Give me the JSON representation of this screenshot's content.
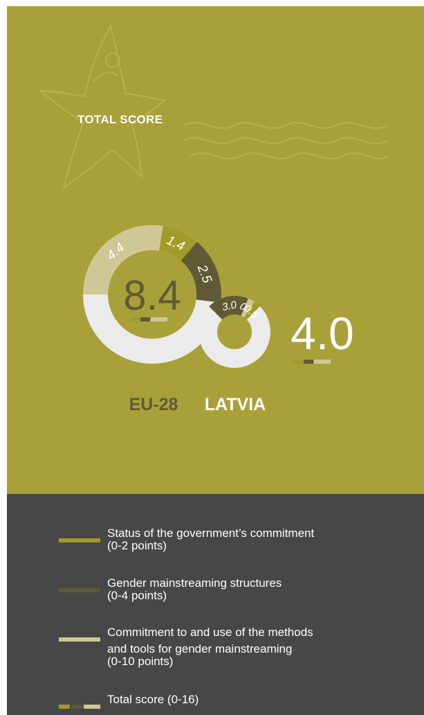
{
  "colors": {
    "background": "#a9a039",
    "legend_background": "#474747",
    "status": "#a39a2a",
    "structures": "#5f5a35",
    "methods": "#cfc896",
    "remainder": "#ebebeb",
    "white": "#ffffff"
  },
  "header": {
    "title": "TOTAL SCORE"
  },
  "chart_data": {
    "type": "pie",
    "total_max": 16,
    "series_order": [
      "status",
      "structures",
      "methods"
    ],
    "charts": [
      {
        "label": "EU-28",
        "total": "8.4",
        "segments": {
          "methods": 4.4,
          "structures": 2.5,
          "status": 1.4
        },
        "value_labels": {
          "methods": "4.4",
          "structures": "2.5",
          "status": "1.4"
        }
      },
      {
        "label": "LATVIA",
        "total": "4.0",
        "segments": {
          "methods": 0.5,
          "structures": 3.0,
          "status": 0.5
        },
        "value_labels": {
          "methods": "0.5",
          "structures": "3.0",
          "status": "0.5"
        }
      }
    ]
  },
  "legend": {
    "items": [
      {
        "key": "status",
        "lines": [
          "Status of the government’s commitment",
          "(0-2 points)"
        ]
      },
      {
        "key": "structures",
        "lines": [
          "Gender mainstreaming structures",
          "(0-4 points)"
        ]
      },
      {
        "key": "methods",
        "lines": [
          "Commitment to and use of the methods",
          "and tools for gender mainstreaming",
          "(0-10 points)"
        ]
      },
      {
        "key": "total",
        "lines": [
          "Total score (0-16)"
        ]
      }
    ]
  }
}
